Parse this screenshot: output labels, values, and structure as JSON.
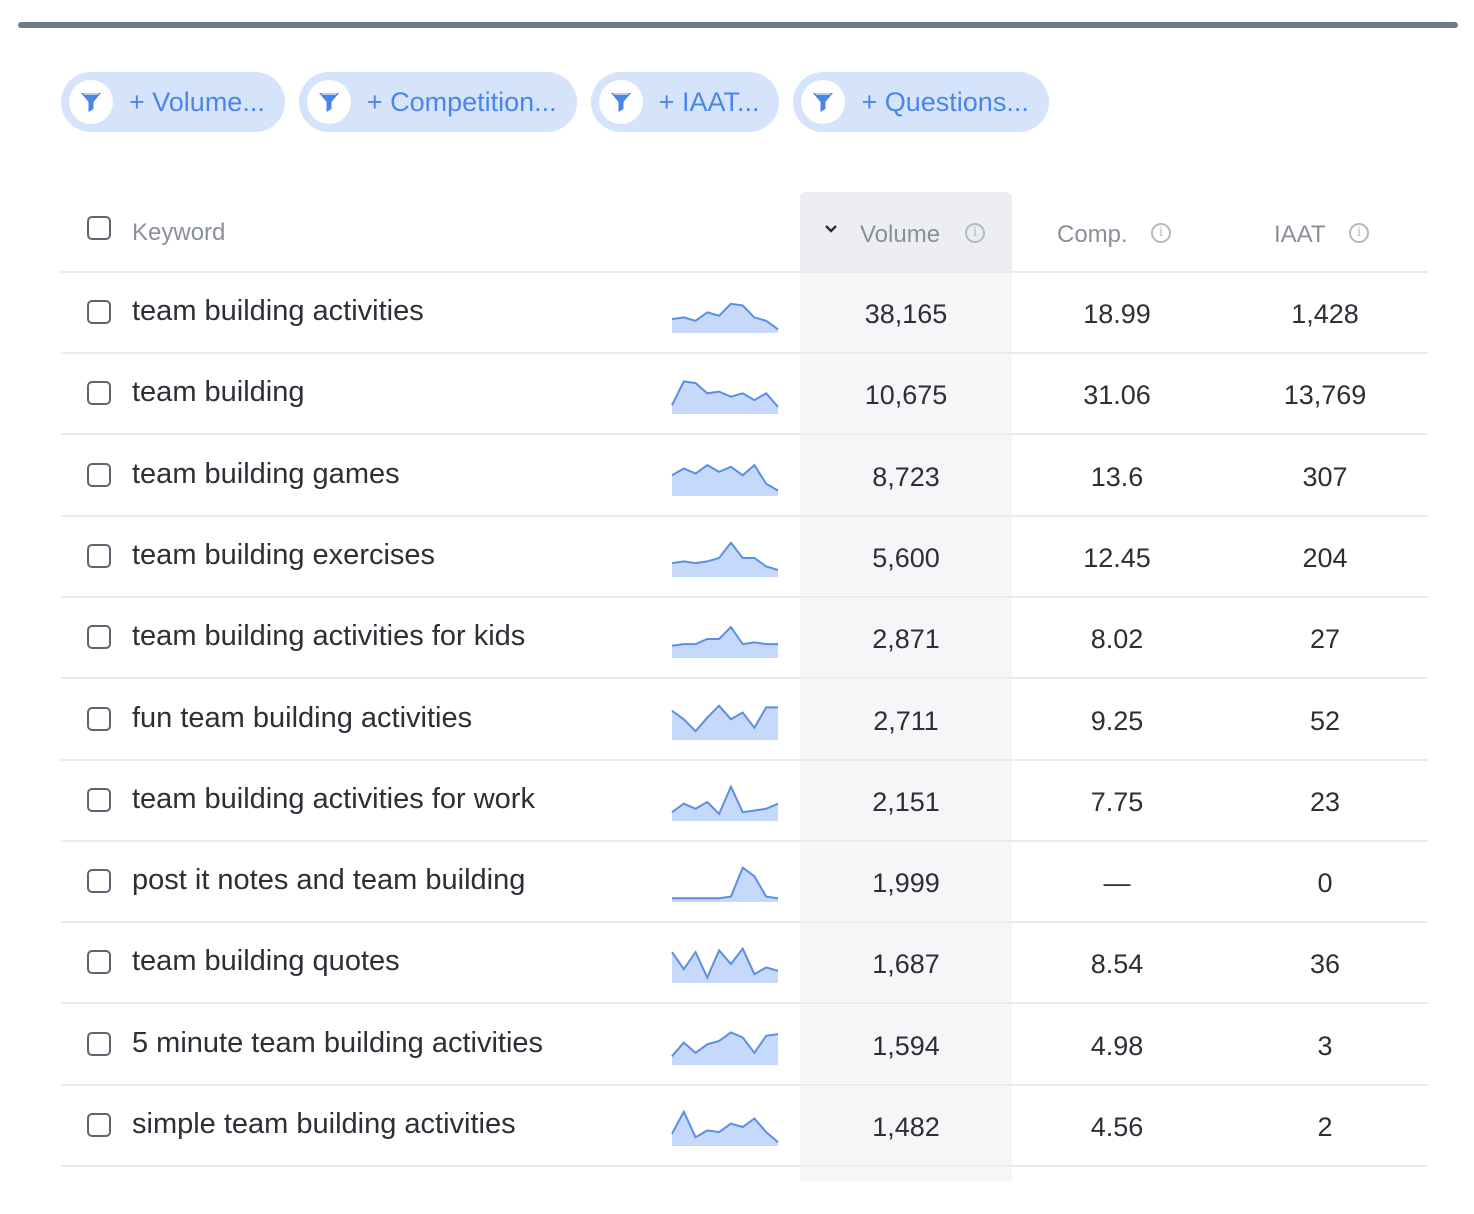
{
  "filters": [
    {
      "label": "+ Volume..."
    },
    {
      "label": "+ Competition..."
    },
    {
      "label": "+ IAAT..."
    },
    {
      "label": "+ Questions..."
    }
  ],
  "table": {
    "headers": {
      "keyword": "Keyword",
      "volume": "Volume",
      "comp": "Comp.",
      "iaat": "IAAT",
      "info_glyph": "i"
    },
    "rows": [
      {
        "keyword": "team building activities",
        "volume": "38,165",
        "comp": "18.99",
        "iaat": "1,428",
        "trend": [
          0.35,
          0.4,
          0.3,
          0.55,
          0.45,
          0.8,
          0.75,
          0.4,
          0.3,
          0.05
        ]
      },
      {
        "keyword": "team building",
        "volume": "10,675",
        "comp": "31.06",
        "iaat": "13,769",
        "trend": [
          0.2,
          0.9,
          0.85,
          0.55,
          0.6,
          0.45,
          0.55,
          0.35,
          0.55,
          0.15
        ]
      },
      {
        "keyword": "team building games",
        "volume": "8,723",
        "comp": "13.6",
        "iaat": "307",
        "trend": [
          0.55,
          0.75,
          0.6,
          0.85,
          0.65,
          0.8,
          0.55,
          0.85,
          0.3,
          0.1
        ]
      },
      {
        "keyword": "team building exercises",
        "volume": "5,600",
        "comp": "12.45",
        "iaat": "204",
        "trend": [
          0.35,
          0.4,
          0.35,
          0.4,
          0.5,
          0.95,
          0.5,
          0.5,
          0.25,
          0.15
        ]
      },
      {
        "keyword": "team building activities for kids",
        "volume": "2,871",
        "comp": "8.02",
        "iaat": "27",
        "trend": [
          0.3,
          0.35,
          0.35,
          0.5,
          0.5,
          0.85,
          0.35,
          0.4,
          0.35,
          0.35
        ]
      },
      {
        "keyword": "fun team building activities",
        "volume": "2,711",
        "comp": "9.25",
        "iaat": "52",
        "trend": [
          0.8,
          0.55,
          0.2,
          0.6,
          0.95,
          0.55,
          0.75,
          0.3,
          0.9,
          0.9
        ]
      },
      {
        "keyword": "team building activities for work",
        "volume": "2,151",
        "comp": "7.75",
        "iaat": "23",
        "trend": [
          0.2,
          0.45,
          0.3,
          0.5,
          0.15,
          0.95,
          0.2,
          0.25,
          0.3,
          0.45
        ]
      },
      {
        "keyword": "post it notes and team building",
        "volume": "1,999",
        "comp": "—",
        "iaat": "0",
        "trend": [
          0.05,
          0.05,
          0.05,
          0.05,
          0.05,
          0.1,
          0.95,
          0.7,
          0.1,
          0.05
        ]
      },
      {
        "keyword": "team building quotes",
        "volume": "1,687",
        "comp": "8.54",
        "iaat": "36",
        "trend": [
          0.85,
          0.35,
          0.85,
          0.1,
          0.9,
          0.5,
          0.95,
          0.2,
          0.4,
          0.3
        ]
      },
      {
        "keyword": "5 minute team building activities",
        "volume": "1,594",
        "comp": "4.98",
        "iaat": "3",
        "trend": [
          0.2,
          0.6,
          0.3,
          0.55,
          0.65,
          0.9,
          0.75,
          0.3,
          0.8,
          0.85
        ]
      },
      {
        "keyword": "simple team building activities",
        "volume": "1,482",
        "comp": "4.56",
        "iaat": "2",
        "trend": [
          0.3,
          0.95,
          0.2,
          0.4,
          0.35,
          0.6,
          0.5,
          0.75,
          0.35,
          0.05
        ]
      }
    ]
  },
  "colors": {
    "chip_bg": "#d5e3fb",
    "chip_text": "#4a86e8",
    "spark_line": "#5a8fe6",
    "spark_fill": "#c7d9fb"
  },
  "icons": {
    "filter": "funnel-icon",
    "sort": "chevron-down-icon",
    "info": "info-icon"
  }
}
